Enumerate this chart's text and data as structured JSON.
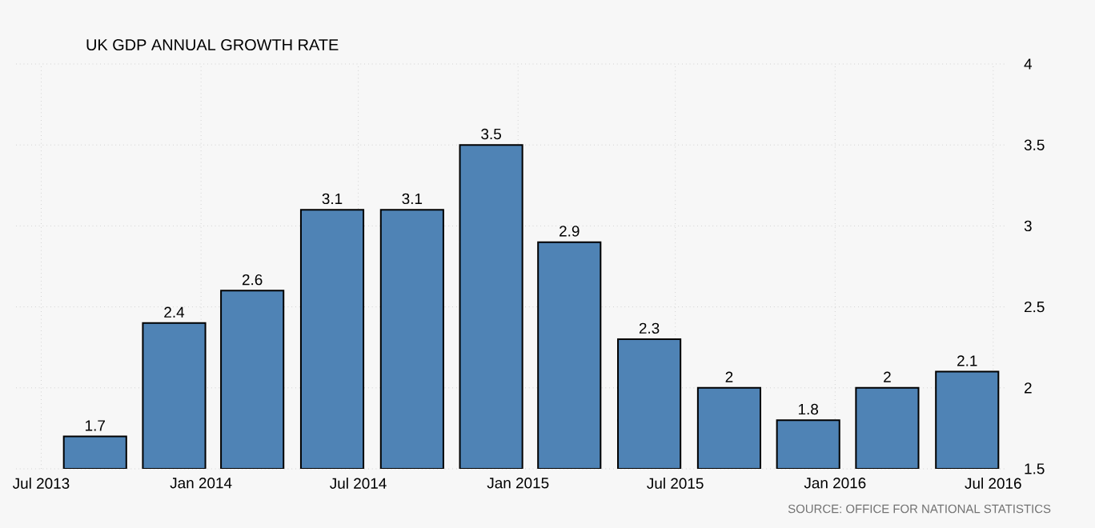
{
  "chart_data": {
    "type": "bar",
    "title": "UK GDP ANNUAL GROWTH RATE",
    "x": [
      "2013-09",
      "2013-12",
      "2014-03",
      "2014-06",
      "2014-09",
      "2014-12",
      "2015-03",
      "2015-06",
      "2015-09",
      "2015-12",
      "2016-03",
      "2016-06"
    ],
    "values": [
      1.7,
      2.4,
      2.6,
      3.1,
      3.1,
      3.5,
      2.9,
      2.3,
      2,
      1.8,
      2,
      2.1
    ],
    "color": "#4f83b5",
    "data_labels": true,
    "grid": true,
    "xlim": [
      "2013-06-02",
      "2016-07-15"
    ],
    "xticks": [
      {
        "value": "2013-07",
        "label": "Jul 2013"
      },
      {
        "value": "2014-01",
        "label": "Jan 2014"
      },
      {
        "value": "2014-07",
        "label": "Jul 2014"
      },
      {
        "value": "2015-01",
        "label": "Jan 2015"
      },
      {
        "value": "2015-07",
        "label": "Jul 2015"
      },
      {
        "value": "2016-01",
        "label": "Jan 2016"
      },
      {
        "value": "2016-07",
        "label": "Jul 2016"
      }
    ],
    "ylim": [
      1.5,
      4
    ],
    "yticks": [
      1.5,
      2,
      2.5,
      3,
      3.5,
      4
    ],
    "annotations": [
      "SOURCE: OFFICE FOR NATIONAL STATISTICS"
    ]
  }
}
